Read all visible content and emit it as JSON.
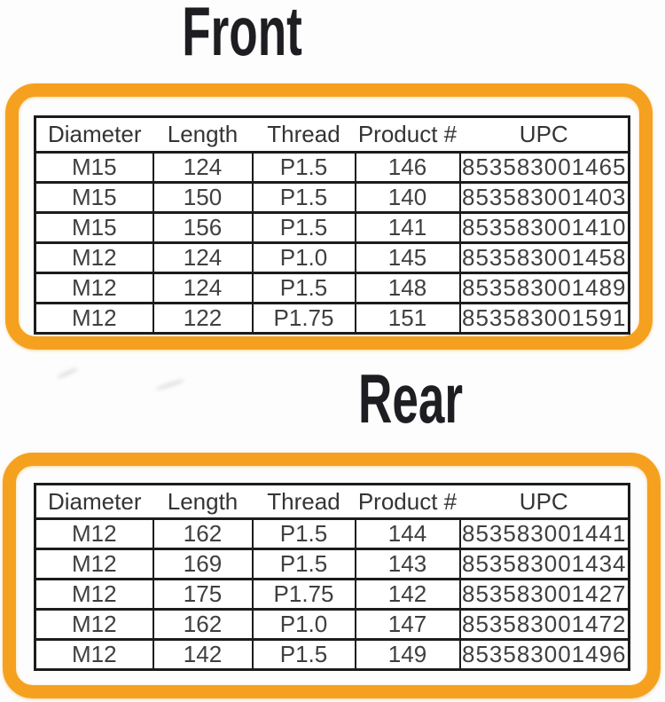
{
  "theme": {
    "accent_orange": "#F5A11F",
    "glow_yellow": "#FDE2AE",
    "line_color": "#1c1c1c",
    "cell_text": "#3f3f3f",
    "title_color": "#1e1e22",
    "page_bg": "#fdfdfd"
  },
  "sections": [
    {
      "title": "Front",
      "table": {
        "headers": [
          "Diameter",
          "Length",
          "Thread",
          "Product #",
          "UPC"
        ],
        "rows": [
          [
            "M15",
            "124",
            "P1.5",
            "146",
            "853583001465"
          ],
          [
            "M15",
            "150",
            "P1.5",
            "140",
            "853583001403"
          ],
          [
            "M15",
            "156",
            "P1.5",
            "141",
            "853583001410"
          ],
          [
            "M12",
            "124",
            "P1.0",
            "145",
            "853583001458"
          ],
          [
            "M12",
            "124",
            "P1.5",
            "148",
            "853583001489"
          ],
          [
            "M12",
            "122",
            "P1.75",
            "151",
            "853583001591"
          ]
        ]
      }
    },
    {
      "title": "Rear",
      "table": {
        "headers": [
          "Diameter",
          "Length",
          "Thread",
          "Product #",
          "UPC"
        ],
        "rows": [
          [
            "M12",
            "162",
            "P1.5",
            "144",
            "853583001441"
          ],
          [
            "M12",
            "169",
            "P1.5",
            "143",
            "853583001434"
          ],
          [
            "M12",
            "175",
            "P1.75",
            "142",
            "853583001427"
          ],
          [
            "M12",
            "162",
            "P1.0",
            "147",
            "853583001472"
          ],
          [
            "M12",
            "142",
            "P1.5",
            "149",
            "853583001496"
          ]
        ]
      }
    }
  ],
  "chart_data": [
    {
      "type": "table",
      "title": "Front",
      "columns": [
        "Diameter",
        "Length",
        "Thread",
        "Product #",
        "UPC"
      ],
      "rows": [
        [
          "M15",
          124,
          "P1.5",
          146,
          "853583001465"
        ],
        [
          "M15",
          150,
          "P1.5",
          140,
          "853583001403"
        ],
        [
          "M15",
          156,
          "P1.5",
          141,
          "853583001410"
        ],
        [
          "M12",
          124,
          "P1.0",
          145,
          "853583001458"
        ],
        [
          "M12",
          124,
          "P1.5",
          148,
          "853583001489"
        ],
        [
          "M12",
          122,
          "P1.75",
          151,
          "853583001591"
        ]
      ]
    },
    {
      "type": "table",
      "title": "Rear",
      "columns": [
        "Diameter",
        "Length",
        "Thread",
        "Product #",
        "UPC"
      ],
      "rows": [
        [
          "M12",
          162,
          "P1.5",
          144,
          "853583001441"
        ],
        [
          "M12",
          169,
          "P1.5",
          143,
          "853583001434"
        ],
        [
          "M12",
          175,
          "P1.75",
          142,
          "853583001427"
        ],
        [
          "M12",
          162,
          "P1.0",
          147,
          "853583001472"
        ],
        [
          "M12",
          142,
          "P1.5",
          149,
          "853583001496"
        ]
      ]
    }
  ]
}
